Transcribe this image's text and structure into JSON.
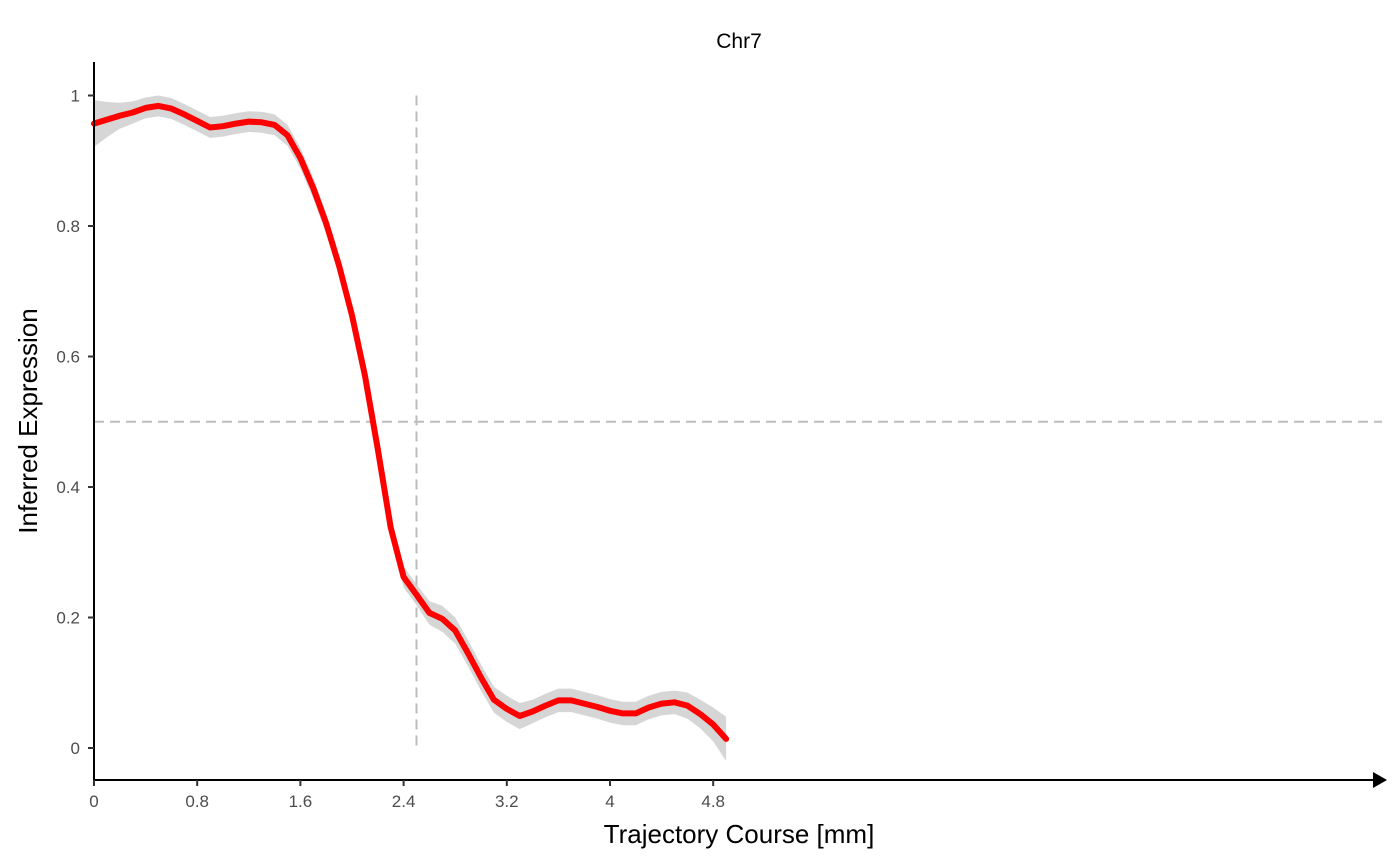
{
  "chart_data": {
    "type": "line",
    "title": "Chr7",
    "xlabel": "Trajectory Course [mm]",
    "ylabel": "Inferred Expression",
    "xlim": [
      0,
      4.95
    ],
    "ylim": [
      -0.05,
      1.05
    ],
    "x_ticks": [
      {
        "value": 0,
        "label": "0"
      },
      {
        "value": 0.8,
        "label": "0.8"
      },
      {
        "value": 1.6,
        "label": "1.6"
      },
      {
        "value": 2.4,
        "label": "2.4"
      },
      {
        "value": 3.2,
        "label": "3.2"
      },
      {
        "value": 4,
        "label": "4"
      },
      {
        "value": 4.8,
        "label": "4.8"
      }
    ],
    "y_ticks": [
      {
        "value": 0,
        "label": "0"
      },
      {
        "value": 0.2,
        "label": "0.2"
      },
      {
        "value": 0.4,
        "label": "0.4"
      },
      {
        "value": 0.6,
        "label": "0.6"
      },
      {
        "value": 0.8,
        "label": "0.8"
      },
      {
        "value": 1,
        "label": "1"
      }
    ],
    "grid": false,
    "reference_lines": {
      "horizontal_y": 0.5,
      "vertical_x": 2.5,
      "vertical_y_range": [
        0,
        1
      ]
    },
    "series": [
      {
        "color": "#ff0000",
        "points": [
          [
            0.0,
            0.957
          ],
          [
            0.1,
            0.963
          ],
          [
            0.2,
            0.969
          ],
          [
            0.3,
            0.974
          ],
          [
            0.4,
            0.981
          ],
          [
            0.5,
            0.984
          ],
          [
            0.6,
            0.98
          ],
          [
            0.7,
            0.971
          ],
          [
            0.8,
            0.961
          ],
          [
            0.9,
            0.951
          ],
          [
            1.0,
            0.953
          ],
          [
            1.1,
            0.957
          ],
          [
            1.2,
            0.96
          ],
          [
            1.3,
            0.959
          ],
          [
            1.4,
            0.955
          ],
          [
            1.5,
            0.939
          ],
          [
            1.6,
            0.904
          ],
          [
            1.7,
            0.858
          ],
          [
            1.8,
            0.804
          ],
          [
            1.9,
            0.739
          ],
          [
            2.0,
            0.663
          ],
          [
            2.1,
            0.571
          ],
          [
            2.2,
            0.458
          ],
          [
            2.3,
            0.338
          ],
          [
            2.4,
            0.262
          ],
          [
            2.5,
            0.235
          ],
          [
            2.6,
            0.207
          ],
          [
            2.7,
            0.198
          ],
          [
            2.8,
            0.18
          ],
          [
            2.9,
            0.145
          ],
          [
            3.0,
            0.108
          ],
          [
            3.1,
            0.074
          ],
          [
            3.2,
            0.06
          ],
          [
            3.3,
            0.049
          ],
          [
            3.4,
            0.056
          ],
          [
            3.5,
            0.065
          ],
          [
            3.6,
            0.073
          ],
          [
            3.7,
            0.073
          ],
          [
            3.8,
            0.068
          ],
          [
            3.9,
            0.063
          ],
          [
            4.0,
            0.057
          ],
          [
            4.1,
            0.053
          ],
          [
            4.2,
            0.053
          ],
          [
            4.3,
            0.062
          ],
          [
            4.4,
            0.068
          ],
          [
            4.5,
            0.07
          ],
          [
            4.6,
            0.065
          ],
          [
            4.7,
            0.052
          ],
          [
            4.8,
            0.036
          ],
          [
            4.9,
            0.014
          ]
        ],
        "ci_halfwidth": [
          0.036,
          0.027,
          0.02,
          0.017,
          0.016,
          0.016,
          0.016,
          0.016,
          0.016,
          0.016,
          0.016,
          0.016,
          0.016,
          0.016,
          0.016,
          0.016,
          0.016,
          0.016,
          0.016,
          0.016,
          0.016,
          0.016,
          0.016,
          0.016,
          0.016,
          0.016,
          0.018,
          0.02,
          0.02,
          0.02,
          0.02,
          0.02,
          0.02,
          0.02,
          0.018,
          0.018,
          0.018,
          0.018,
          0.018,
          0.018,
          0.018,
          0.018,
          0.018,
          0.018,
          0.018,
          0.018,
          0.02,
          0.022,
          0.026,
          0.034
        ]
      }
    ],
    "colors": {
      "line": "#ff0000",
      "ribbon": "#d6d6d6",
      "reference": "#bdbdbd",
      "axis": "#000000"
    }
  }
}
